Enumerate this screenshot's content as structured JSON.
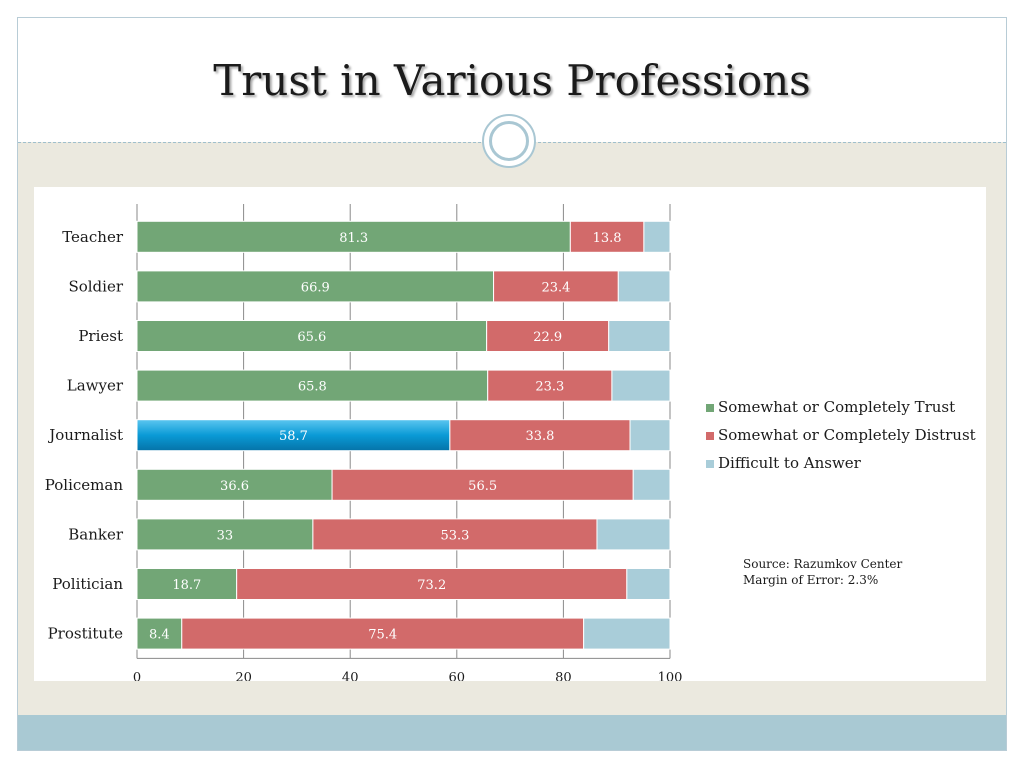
{
  "slide": {
    "title": "Trust in Various Professions",
    "source_line": "Source:  Razumkov Center",
    "margin_line": "Margin of Error: 2.3%"
  },
  "chart_data": {
    "type": "bar",
    "orientation": "horizontal",
    "stacked": true,
    "title": "",
    "xlabel": "",
    "ylabel": "",
    "xlim": [
      0,
      100
    ],
    "x_ticks": [
      0,
      20,
      40,
      60,
      80,
      100
    ],
    "grid": true,
    "legend_position": "right",
    "categories": [
      "Teacher",
      "Soldier",
      "Priest",
      "Lawyer",
      "Journalist",
      "Policeman",
      "Banker",
      "Politician",
      "Prostitute"
    ],
    "highlight_category": "Journalist",
    "series": [
      {
        "name": "Somewhat or Completely Trust",
        "color": "#72a676",
        "highlight_color": "#0a9ad6",
        "values": [
          81.3,
          66.9,
          65.6,
          65.8,
          58.7,
          36.6,
          33,
          18.7,
          8.4
        ],
        "labels": [
          "81.3",
          "66.9",
          "65.6",
          "65.8",
          "58.7",
          "36.6",
          "33",
          "18.7",
          "8.4"
        ]
      },
      {
        "name": "Somewhat or Completely Distrust",
        "color": "#d26a6a",
        "values": [
          13.8,
          23.4,
          22.9,
          23.3,
          33.8,
          56.5,
          53.3,
          73.2,
          75.4
        ],
        "labels": [
          "13.8",
          "23.4",
          "22.9",
          "23.3",
          "33.8",
          "56.5",
          "53.3",
          "73.2",
          "75.4"
        ]
      },
      {
        "name": "Difficult to Answer",
        "color": "#a9cdd9",
        "values": [
          4.9,
          9.7,
          11.5,
          10.9,
          7.5,
          6.9,
          13.7,
          8.1,
          16.2
        ],
        "labels": [
          "",
          "",
          "",
          "",
          "",
          "",
          "",
          "",
          ""
        ]
      }
    ]
  }
}
